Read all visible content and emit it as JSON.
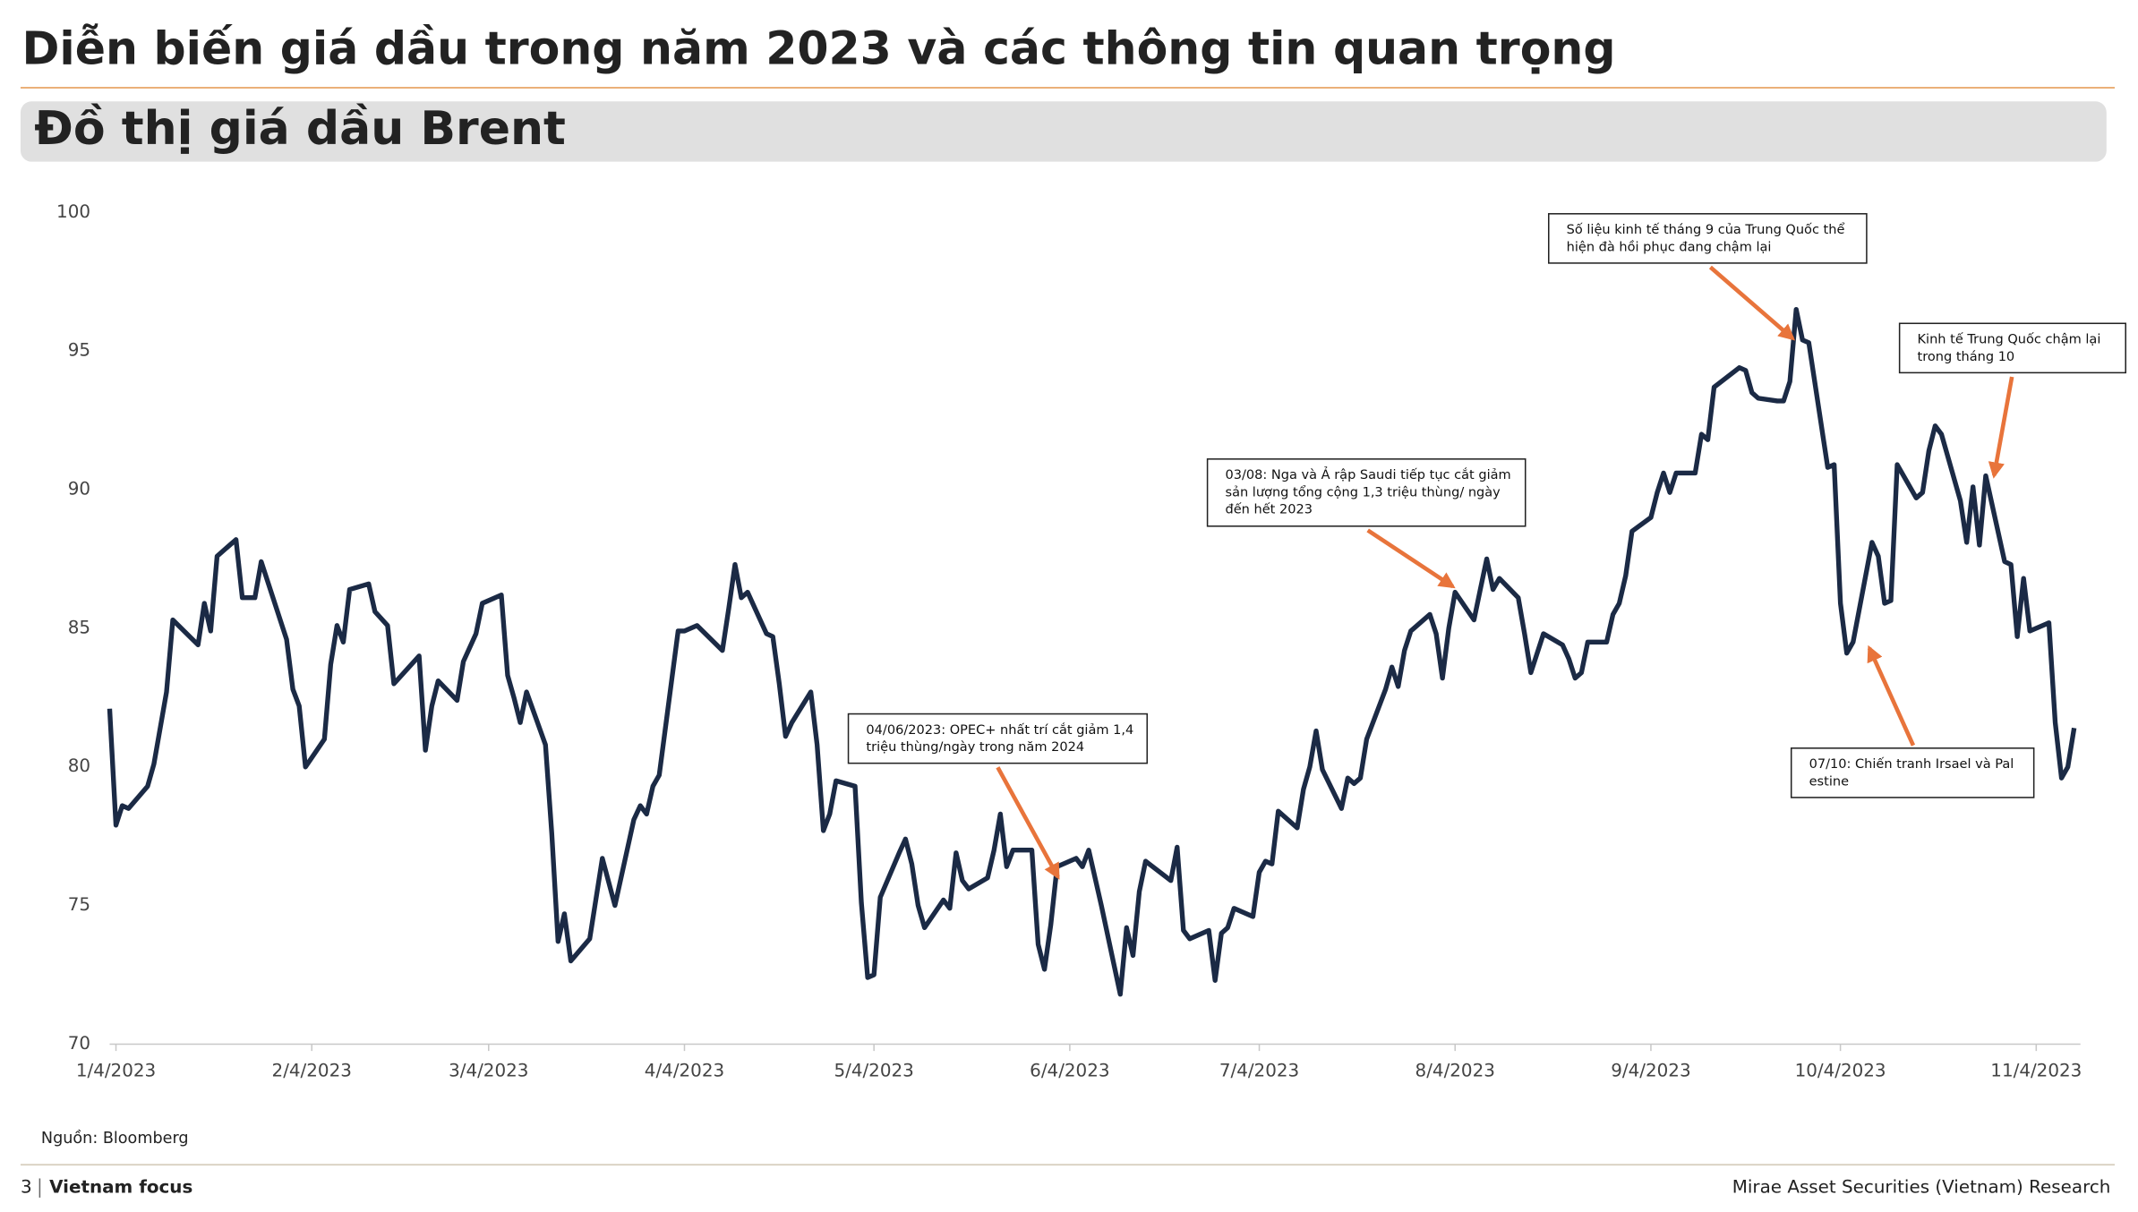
{
  "header": {
    "title": "Diễn biến giá dầu trong năm 2023 và các thông tin quan trọng",
    "section": "Đồ thị giá dầu Brent"
  },
  "chart_data": {
    "type": "line",
    "color": "#1b2a45",
    "x": [
      "2023-01-03",
      "2023-01-04",
      "2023-01-05",
      "2023-01-06",
      "2023-01-09",
      "2023-01-10",
      "2023-01-12",
      "2023-01-13",
      "2023-01-17",
      "2023-01-18",
      "2023-01-19",
      "2023-01-20",
      "2023-01-23",
      "2023-01-24",
      "2023-01-26",
      "2023-01-27",
      "2023-01-31",
      "2023-02-01",
      "2023-02-02",
      "2023-02-03",
      "2023-02-06",
      "2023-02-07",
      "2023-02-08",
      "2023-02-09",
      "2023-02-10",
      "2023-02-13",
      "2023-02-14",
      "2023-02-16",
      "2023-02-17",
      "2023-02-21",
      "2023-02-22",
      "2023-02-23",
      "2023-02-24",
      "2023-02-27",
      "2023-02-28",
      "2023-03-02",
      "2023-03-03",
      "2023-03-06",
      "2023-03-07",
      "2023-03-08",
      "2023-03-09",
      "2023-03-10",
      "2023-03-13",
      "2023-03-14",
      "2023-03-15",
      "2023-03-16",
      "2023-03-17",
      "2023-03-20",
      "2023-03-22",
      "2023-03-24",
      "2023-03-27",
      "2023-03-28",
      "2023-03-29",
      "2023-03-30",
      "2023-03-31",
      "2023-04-03",
      "2023-04-04",
      "2023-04-06",
      "2023-04-10",
      "2023-04-11",
      "2023-04-12",
      "2023-04-13",
      "2023-04-14",
      "2023-04-17",
      "2023-04-18",
      "2023-04-19",
      "2023-04-20",
      "2023-04-21",
      "2023-04-24",
      "2023-04-25",
      "2023-04-26",
      "2023-04-27",
      "2023-04-28",
      "2023-05-01",
      "2023-05-02",
      "2023-05-03",
      "2023-05-04",
      "2023-05-05",
      "2023-05-08",
      "2023-05-09",
      "2023-05-10",
      "2023-05-11",
      "2023-05-12",
      "2023-05-15",
      "2023-05-16",
      "2023-05-17",
      "2023-05-18",
      "2023-05-19",
      "2023-05-22",
      "2023-05-23",
      "2023-05-24",
      "2023-05-25",
      "2023-05-26",
      "2023-05-29",
      "2023-05-30",
      "2023-05-31",
      "2023-06-01",
      "2023-06-02",
      "2023-06-05",
      "2023-06-06",
      "2023-06-07",
      "2023-06-09",
      "2023-06-12",
      "2023-06-13",
      "2023-06-14",
      "2023-06-15",
      "2023-06-16",
      "2023-06-20",
      "2023-06-21",
      "2023-06-22",
      "2023-06-23",
      "2023-06-26",
      "2023-06-27",
      "2023-06-28",
      "2023-06-29",
      "2023-06-30",
      "2023-07-03",
      "2023-07-04",
      "2023-07-05",
      "2023-07-06",
      "2023-07-07",
      "2023-07-10",
      "2023-07-11",
      "2023-07-12",
      "2023-07-13",
      "2023-07-14",
      "2023-07-17",
      "2023-07-18",
      "2023-07-19",
      "2023-07-20",
      "2023-07-21",
      "2023-07-24",
      "2023-07-25",
      "2023-07-26",
      "2023-07-27",
      "2023-07-28",
      "2023-07-31",
      "2023-08-01",
      "2023-08-02",
      "2023-08-03",
      "2023-08-04",
      "2023-08-07",
      "2023-08-08",
      "2023-08-09",
      "2023-08-10",
      "2023-08-11",
      "2023-08-14",
      "2023-08-15",
      "2023-08-16",
      "2023-08-18",
      "2023-08-21",
      "2023-08-22",
      "2023-08-23",
      "2023-08-24",
      "2023-08-25",
      "2023-08-28",
      "2023-08-29",
      "2023-08-30",
      "2023-08-31",
      "2023-09-01",
      "2023-09-04",
      "2023-09-05",
      "2023-09-06",
      "2023-09-07",
      "2023-09-08",
      "2023-09-11",
      "2023-09-12",
      "2023-09-13",
      "2023-09-14",
      "2023-09-18",
      "2023-09-19",
      "2023-09-20",
      "2023-09-21",
      "2023-09-24",
      "2023-09-25",
      "2023-09-26",
      "2023-09-27",
      "2023-09-28",
      "2023-09-29",
      "2023-10-02",
      "2023-10-03",
      "2023-10-04",
      "2023-10-05",
      "2023-10-06",
      "2023-10-09",
      "2023-10-10",
      "2023-10-11",
      "2023-10-12",
      "2023-10-13",
      "2023-10-16",
      "2023-10-17",
      "2023-10-18",
      "2023-10-19",
      "2023-10-20",
      "2023-10-23",
      "2023-10-24",
      "2023-10-25",
      "2023-10-26",
      "2023-10-27",
      "2023-10-30",
      "2023-10-31",
      "2023-11-01",
      "2023-11-02",
      "2023-11-03",
      "2023-11-06",
      "2023-11-07",
      "2023-11-08",
      "2023-11-09",
      "2023-11-10"
    ],
    "values": [
      82.1,
      77.9,
      78.6,
      78.5,
      79.3,
      80.1,
      82.7,
      85.3,
      84.4,
      85.9,
      84.9,
      87.6,
      88.2,
      86.1,
      86.1,
      87.4,
      84.6,
      82.8,
      82.2,
      80.0,
      81.0,
      83.7,
      85.1,
      84.5,
      86.4,
      86.6,
      85.6,
      85.1,
      83.0,
      84.0,
      80.6,
      82.2,
      83.1,
      82.4,
      83.8,
      84.8,
      85.9,
      86.2,
      83.3,
      82.5,
      81.6,
      82.7,
      80.8,
      77.6,
      73.7,
      74.7,
      73.0,
      73.8,
      76.7,
      75.0,
      78.1,
      78.6,
      78.3,
      79.3,
      79.7,
      84.9,
      84.9,
      85.1,
      84.2,
      85.7,
      87.3,
      86.1,
      86.3,
      84.8,
      84.7,
      83.0,
      81.1,
      81.6,
      82.7,
      80.8,
      77.7,
      78.3,
      79.5,
      79.3,
      75.1,
      72.4,
      72.5,
      75.3,
      76.9,
      77.4,
      76.5,
      75.0,
      74.2,
      75.2,
      74.9,
      76.9,
      75.9,
      75.6,
      76.0,
      77.0,
      78.3,
      76.4,
      77.0,
      77.0,
      73.6,
      72.7,
      74.3,
      76.4,
      76.7,
      76.4,
      77.0,
      75.0,
      71.8,
      74.2,
      73.2,
      75.5,
      76.6,
      75.9,
      77.1,
      74.1,
      73.8,
      74.1,
      72.3,
      74.0,
      74.2,
      74.9,
      74.6,
      76.2,
      76.6,
      76.5,
      78.4,
      77.8,
      79.2,
      80.0,
      81.3,
      79.9,
      78.5,
      79.6,
      79.4,
      79.6,
      81.0,
      82.8,
      83.6,
      82.9,
      84.2,
      84.9,
      85.5,
      84.8,
      83.2,
      85.0,
      86.3,
      85.3,
      86.4,
      87.5,
      86.4,
      86.8,
      86.1,
      84.8,
      83.4,
      84.8,
      84.4,
      83.9,
      83.2,
      83.4,
      84.5,
      84.5,
      85.5,
      85.9,
      86.9,
      88.5,
      89.0,
      89.9,
      90.6,
      89.9,
      90.6,
      90.6,
      92.0,
      91.8,
      93.7,
      94.4,
      94.3,
      93.5,
      93.3,
      93.2,
      93.2,
      93.9,
      96.5,
      95.4,
      95.3,
      90.8,
      90.9,
      85.9,
      84.1,
      84.5,
      88.1,
      87.6,
      85.9,
      86.0,
      90.9,
      89.7,
      89.9,
      91.4,
      92.3,
      92.0,
      89.6,
      88.1,
      90.1,
      88.0,
      90.5,
      87.4,
      87.3,
      84.7,
      86.8,
      84.9,
      85.2,
      81.6,
      79.6,
      80.0,
      81.4
    ],
    "xlim": [
      "2023-01-03",
      "2023-11-11"
    ],
    "xticks": [
      {
        "value": "2023-01-04",
        "label": "1/4/2023"
      },
      {
        "value": "2023-02-04",
        "label": "2/4/2023"
      },
      {
        "value": "2023-03-04",
        "label": "3/4/2023"
      },
      {
        "value": "2023-04-04",
        "label": "4/4/2023"
      },
      {
        "value": "2023-05-04",
        "label": "5/4/2023"
      },
      {
        "value": "2023-06-04",
        "label": "6/4/2023"
      },
      {
        "value": "2023-07-04",
        "label": "7/4/2023"
      },
      {
        "value": "2023-08-04",
        "label": "8/4/2023"
      },
      {
        "value": "2023-09-04",
        "label": "9/4/2023"
      },
      {
        "value": "2023-10-04",
        "label": "10/4/2023"
      },
      {
        "value": "2023-11-04",
        "label": "11/4/2023"
      }
    ],
    "ylim": [
      70,
      100
    ],
    "yticks": [
      70,
      75,
      80,
      85,
      90,
      95,
      100
    ],
    "grid": false,
    "annotations": [
      {
        "lines": [
          "Số liệu kinh tế tháng 9 của Trung Quốc thể",
          "hiện đà hồi phục đang chậm lại"
        ]
      },
      {
        "lines": [
          "Kinh tế Trung Quốc chậm lại",
          "trong tháng 10"
        ]
      },
      {
        "lines": [
          "03/08: Nga và Ả rập Saudi tiếp tục cắt giảm",
          "sản lượng tổng cộng 1,3 triệu thùng/ ngày",
          "đến hết 2023"
        ]
      },
      {
        "lines": [
          "04/06/2023: OPEC+ nhất trí cắt giảm 1,4",
          "triệu thùng/ngày trong năm 2024"
        ]
      },
      {
        "lines": [
          "07/10: Chiến tranh Irsael và Pal",
          "estine"
        ]
      }
    ],
    "source": "Nguồn: Bloomberg"
  },
  "footer": {
    "page": "3",
    "section": "Vietnam focus",
    "company": "Mirae Asset Securities (Vietnam) Research"
  }
}
